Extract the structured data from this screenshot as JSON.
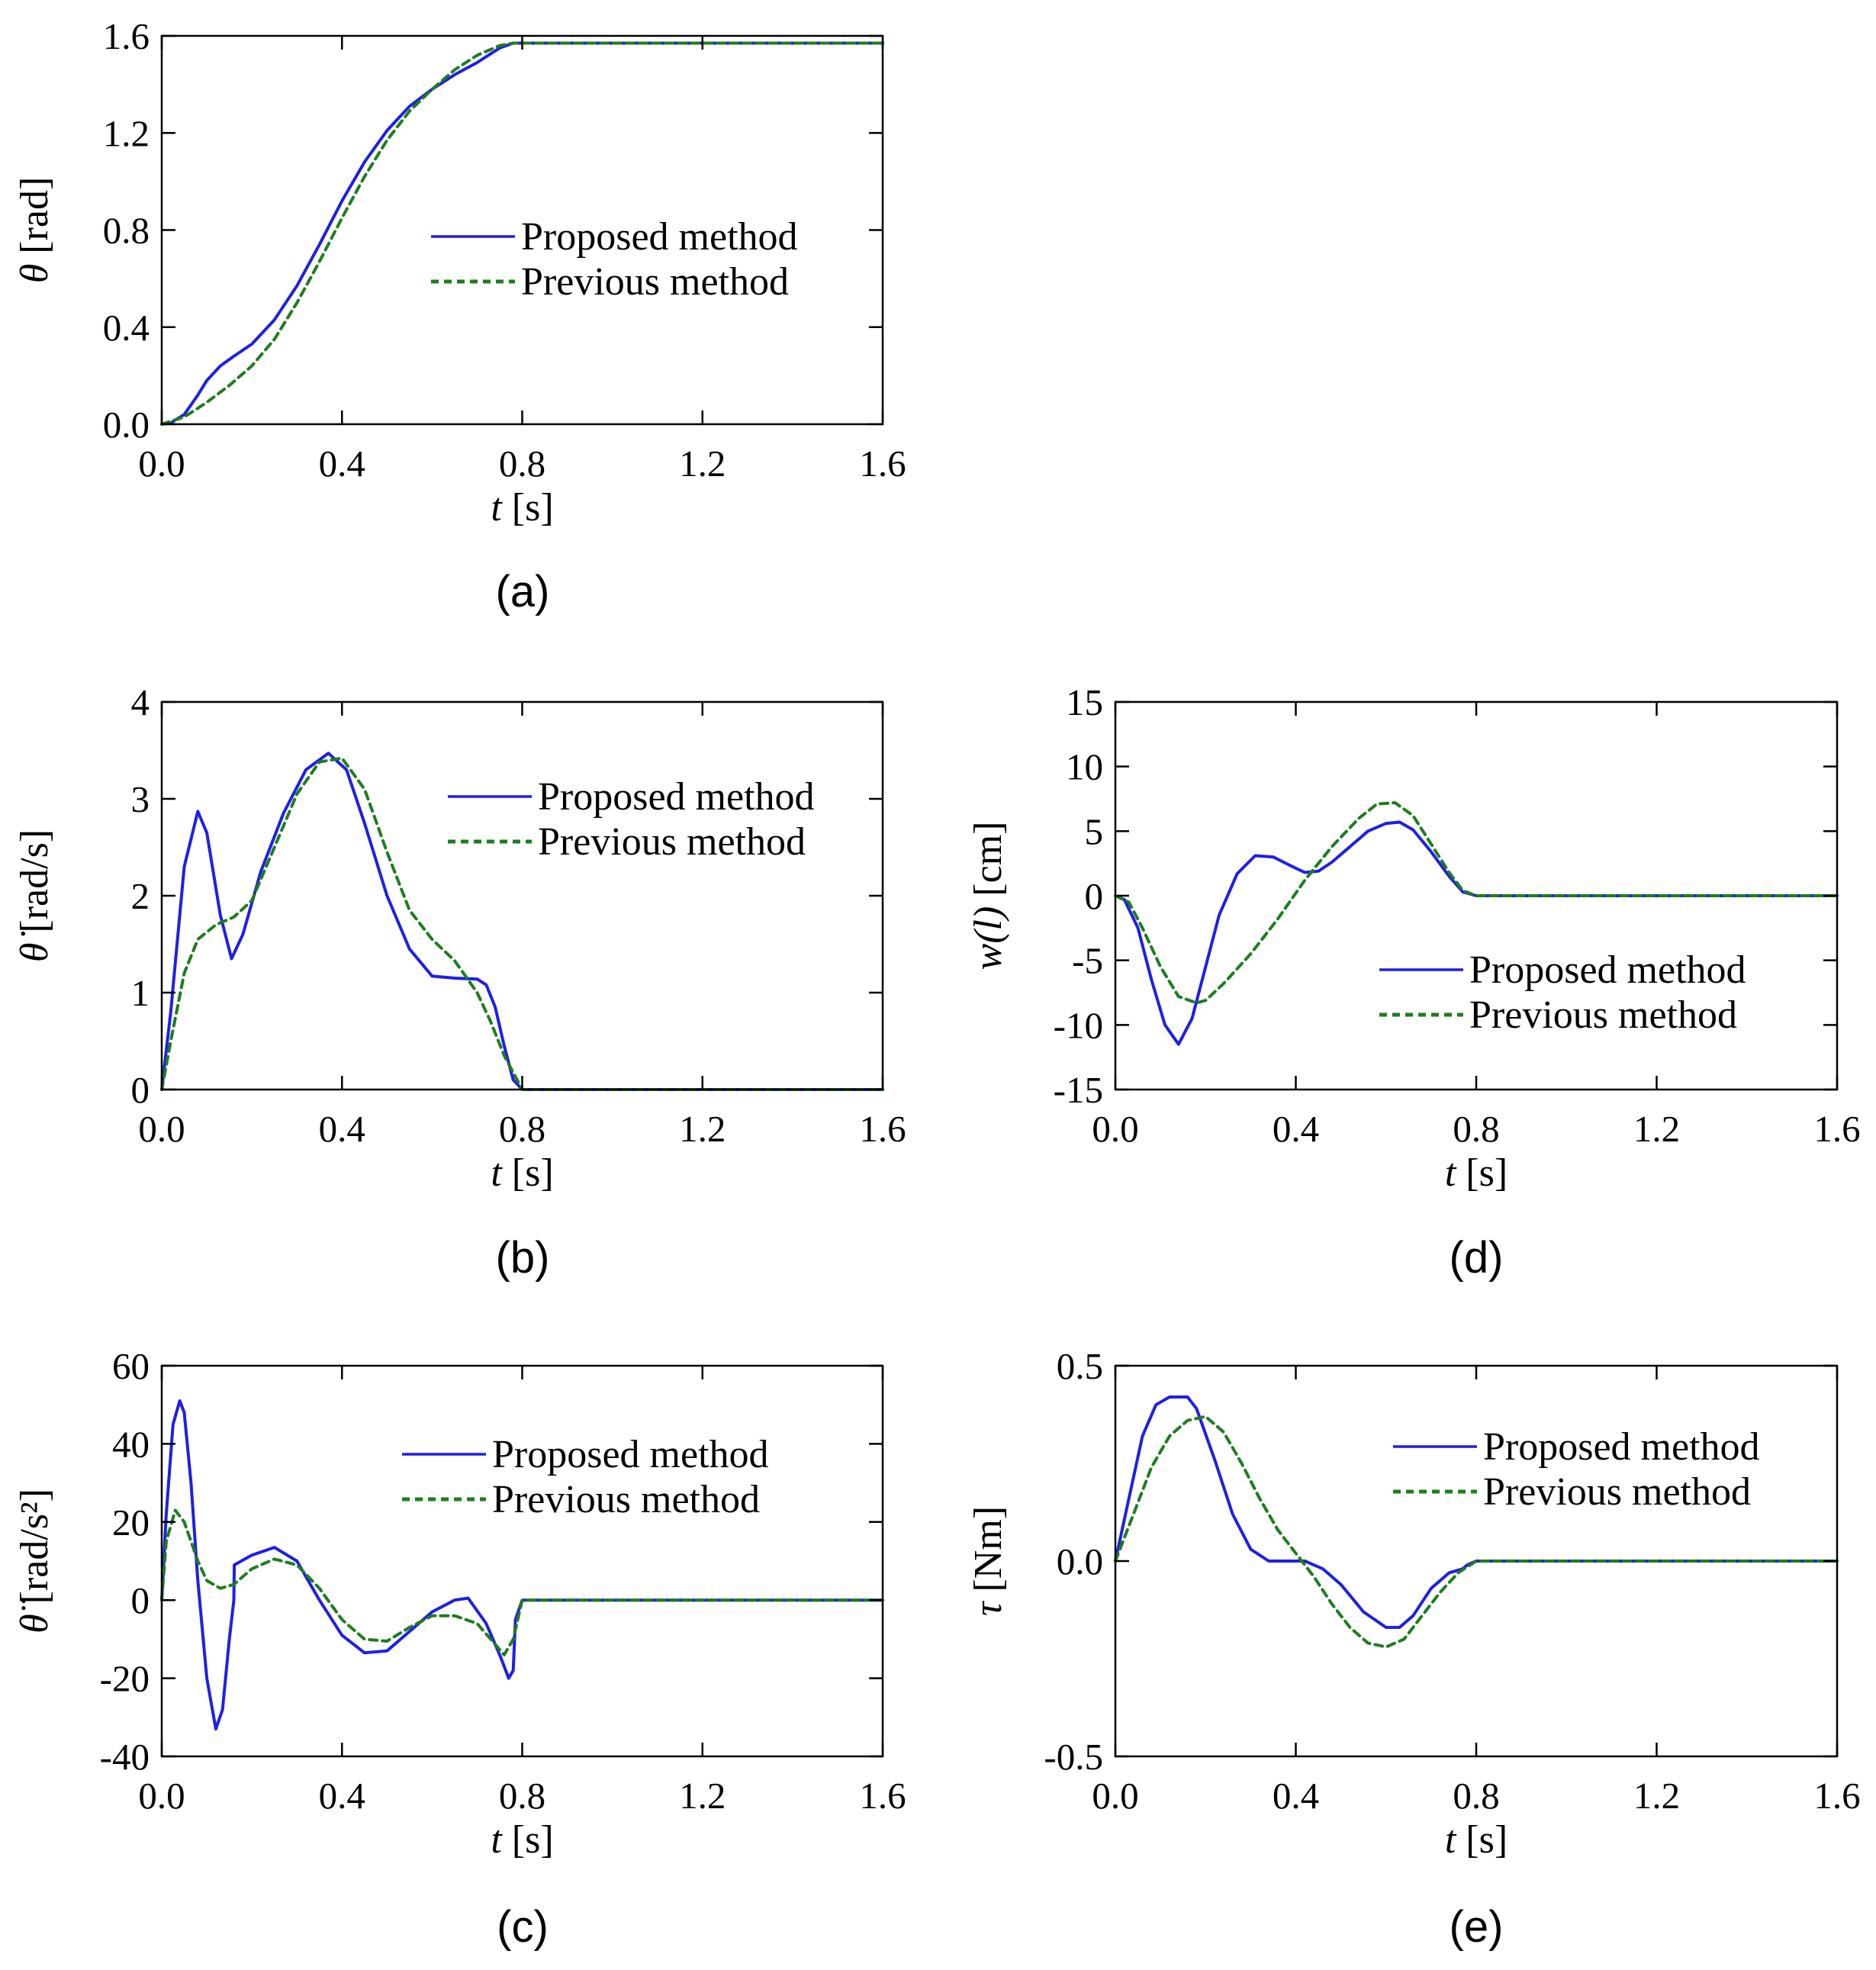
{
  "colors": {
    "proposed": "#1f1fe6",
    "previous": "#1e7d1e",
    "axis": "#000000"
  },
  "legend": {
    "proposed": "Proposed method",
    "previous": "Previous method"
  },
  "chart_data": [
    {
      "id": "a",
      "panel_label": "(a)",
      "type": "line",
      "xlabel": {
        "var": "t",
        "unit": "[s]"
      },
      "ylabel": {
        "var": "θ",
        "unit": "[rad]"
      },
      "xlim": [
        0,
        1.6
      ],
      "ylim": [
        0,
        1.6
      ],
      "xticks": [
        0,
        0.4,
        0.8,
        1.2,
        1.6
      ],
      "xtick_labels": [
        "0.0",
        "0.4",
        "0.8",
        "1.2",
        "1.6"
      ],
      "yticks": [
        0,
        0.4,
        0.8,
        1.2,
        1.6
      ],
      "ytick_labels": [
        "0.0",
        "0.4",
        "0.8",
        "1.2",
        "1.6"
      ],
      "legend_position": "center-right",
      "series": [
        {
          "name": "Proposed method",
          "style": "solid",
          "x": [
            0,
            0.02,
            0.05,
            0.08,
            0.1,
            0.13,
            0.16,
            0.2,
            0.25,
            0.3,
            0.35,
            0.4,
            0.45,
            0.5,
            0.55,
            0.6,
            0.65,
            0.7,
            0.75,
            0.78,
            0.8,
            1.0,
            1.2,
            1.4,
            1.6
          ],
          "y": [
            0,
            0.005,
            0.04,
            0.12,
            0.18,
            0.24,
            0.28,
            0.33,
            0.43,
            0.57,
            0.74,
            0.92,
            1.08,
            1.21,
            1.31,
            1.38,
            1.44,
            1.49,
            1.55,
            1.57,
            1.57,
            1.57,
            1.57,
            1.57,
            1.57
          ]
        },
        {
          "name": "Previous method",
          "style": "dashed",
          "x": [
            0,
            0.05,
            0.1,
            0.15,
            0.2,
            0.25,
            0.3,
            0.35,
            0.4,
            0.45,
            0.5,
            0.55,
            0.6,
            0.65,
            0.7,
            0.75,
            0.78,
            0.8,
            1.0,
            1.2,
            1.4,
            1.6
          ],
          "y": [
            0,
            0.03,
            0.09,
            0.16,
            0.24,
            0.35,
            0.5,
            0.67,
            0.85,
            1.02,
            1.17,
            1.29,
            1.38,
            1.46,
            1.52,
            1.56,
            1.57,
            1.57,
            1.57,
            1.57,
            1.57,
            1.57
          ]
        }
      ]
    },
    {
      "id": "b",
      "panel_label": "(b)",
      "type": "line",
      "xlabel": {
        "var": "t",
        "unit": "[s]"
      },
      "ylabel": {
        "var": "θ̇",
        "unit": "[rad/s]"
      },
      "xlim": [
        0,
        1.6
      ],
      "ylim": [
        0,
        4
      ],
      "xticks": [
        0,
        0.4,
        0.8,
        1.2,
        1.6
      ],
      "xtick_labels": [
        "0.0",
        "0.4",
        "0.8",
        "1.2",
        "1.6"
      ],
      "yticks": [
        0,
        1,
        2,
        3,
        4
      ],
      "ytick_labels": [
        "0",
        "1",
        "2",
        "3",
        "4"
      ],
      "legend_position": "top-right",
      "series": [
        {
          "name": "Proposed method",
          "style": "solid",
          "x": [
            0,
            0.02,
            0.05,
            0.08,
            0.1,
            0.13,
            0.155,
            0.18,
            0.22,
            0.27,
            0.32,
            0.37,
            0.41,
            0.45,
            0.5,
            0.55,
            0.6,
            0.65,
            0.7,
            0.72,
            0.74,
            0.76,
            0.78,
            0.8,
            1.0,
            1.2,
            1.4,
            1.6
          ],
          "y": [
            0,
            0.8,
            2.3,
            2.87,
            2.65,
            1.8,
            1.35,
            1.6,
            2.25,
            2.85,
            3.3,
            3.47,
            3.3,
            2.75,
            2.0,
            1.45,
            1.17,
            1.15,
            1.14,
            1.08,
            0.85,
            0.45,
            0.1,
            0,
            0,
            0,
            0,
            0
          ]
        },
        {
          "name": "Previous method",
          "style": "dashed",
          "x": [
            0,
            0.02,
            0.05,
            0.08,
            0.12,
            0.16,
            0.2,
            0.25,
            0.3,
            0.35,
            0.4,
            0.45,
            0.5,
            0.55,
            0.6,
            0.65,
            0.7,
            0.73,
            0.76,
            0.8,
            1.0,
            1.2,
            1.4,
            1.6
          ],
          "y": [
            0,
            0.5,
            1.2,
            1.55,
            1.7,
            1.78,
            1.95,
            2.5,
            3.05,
            3.38,
            3.42,
            3.1,
            2.45,
            1.85,
            1.55,
            1.33,
            1.0,
            0.7,
            0.35,
            0,
            0,
            0,
            0,
            0
          ]
        }
      ]
    },
    {
      "id": "c",
      "panel_label": "(c)",
      "type": "line",
      "xlabel": {
        "var": "t",
        "unit": "[s]"
      },
      "ylabel": {
        "var": "θ̈",
        "unit": "[rad/s²]"
      },
      "xlim": [
        0,
        1.6
      ],
      "ylim": [
        -40,
        60
      ],
      "xticks": [
        0,
        0.4,
        0.8,
        1.2,
        1.6
      ],
      "xtick_labels": [
        "0.0",
        "0.4",
        "0.8",
        "1.2",
        "1.6"
      ],
      "yticks": [
        -40,
        -20,
        0,
        20,
        40,
        60
      ],
      "ytick_labels": [
        "-40",
        "-20",
        "0",
        "20",
        "40",
        "60"
      ],
      "legend_position": "top-right",
      "series": [
        {
          "name": "Proposed method",
          "style": "solid",
          "x": [
            0,
            0.01,
            0.025,
            0.04,
            0.05,
            0.065,
            0.08,
            0.1,
            0.12,
            0.135,
            0.15,
            0.16,
            0.161,
            0.2,
            0.25,
            0.3,
            0.35,
            0.4,
            0.45,
            0.5,
            0.55,
            0.6,
            0.65,
            0.68,
            0.72,
            0.75,
            0.77,
            0.78,
            0.785,
            0.8,
            1.0,
            1.2,
            1.4,
            1.6
          ],
          "y": [
            0,
            22,
            45,
            51,
            48,
            30,
            5,
            -20,
            -33,
            -28,
            -10,
            0,
            9,
            11.5,
            13.5,
            10,
            0,
            -9,
            -13.5,
            -13,
            -8,
            -3,
            0,
            0.5,
            -6,
            -14,
            -20,
            -18,
            -5,
            0,
            0,
            0,
            0,
            0
          ]
        },
        {
          "name": "Previous method",
          "style": "dashed",
          "x": [
            0,
            0.01,
            0.03,
            0.05,
            0.08,
            0.1,
            0.13,
            0.16,
            0.2,
            0.25,
            0.3,
            0.35,
            0.4,
            0.45,
            0.5,
            0.55,
            0.6,
            0.65,
            0.7,
            0.73,
            0.76,
            0.78,
            0.8,
            1.0,
            1.2,
            1.4,
            1.6
          ],
          "y": [
            0,
            15,
            23,
            20,
            10,
            5,
            3,
            4,
            8,
            10.5,
            9,
            3,
            -5,
            -10,
            -10.5,
            -7,
            -4,
            -4,
            -6,
            -10,
            -14,
            -10,
            0,
            0,
            0,
            0,
            0
          ]
        }
      ]
    },
    {
      "id": "d",
      "panel_label": "(d)",
      "type": "line",
      "xlabel": {
        "var": "t",
        "unit": "[s]"
      },
      "ylabel": {
        "var": "w(l)",
        "unit": "[cm]"
      },
      "xlim": [
        0,
        1.6
      ],
      "ylim": [
        -15,
        15
      ],
      "xticks": [
        0,
        0.4,
        0.8,
        1.2,
        1.6
      ],
      "xtick_labels": [
        "0.0",
        "0.4",
        "0.8",
        "1.2",
        "1.6"
      ],
      "yticks": [
        -15,
        -10,
        -5,
        0,
        5,
        10,
        15
      ],
      "ytick_labels": [
        "-15",
        "-10",
        "-5",
        "0",
        "5",
        "10",
        "15"
      ],
      "legend_position": "bottom-right",
      "series": [
        {
          "name": "Proposed method",
          "style": "solid",
          "x": [
            0,
            0.02,
            0.05,
            0.08,
            0.11,
            0.14,
            0.17,
            0.2,
            0.23,
            0.27,
            0.31,
            0.35,
            0.39,
            0.42,
            0.45,
            0.48,
            0.52,
            0.56,
            0.6,
            0.63,
            0.66,
            0.7,
            0.74,
            0.77,
            0.8,
            1.0,
            1.2,
            1.4,
            1.6
          ],
          "y": [
            0,
            -0.3,
            -2.5,
            -6.5,
            -10,
            -11.5,
            -9.5,
            -5.5,
            -1.5,
            1.7,
            3.1,
            3.0,
            2.3,
            1.8,
            1.9,
            2.6,
            3.8,
            5.0,
            5.6,
            5.7,
            5.1,
            3.4,
            1.5,
            0.3,
            0,
            0,
            0,
            0,
            0
          ]
        },
        {
          "name": "Previous method",
          "style": "dashed",
          "x": [
            0,
            0.03,
            0.06,
            0.1,
            0.14,
            0.18,
            0.2,
            0.24,
            0.3,
            0.36,
            0.42,
            0.48,
            0.54,
            0.58,
            0.62,
            0.66,
            0.7,
            0.74,
            0.77,
            0.8,
            1.0,
            1.2,
            1.4,
            1.6
          ],
          "y": [
            0,
            -0.5,
            -2.5,
            -5.5,
            -7.8,
            -8.3,
            -8.1,
            -6.8,
            -4.5,
            -1.8,
            1.2,
            3.8,
            6.0,
            7.1,
            7.2,
            6.2,
            4.0,
            1.8,
            0.4,
            0,
            0,
            0,
            0,
            0
          ]
        }
      ]
    },
    {
      "id": "e",
      "panel_label": "(e)",
      "type": "line",
      "xlabel": {
        "var": "t",
        "unit": "[s]"
      },
      "ylabel": {
        "var": "τ",
        "unit": "[Nm]"
      },
      "xlim": [
        0,
        1.6
      ],
      "ylim": [
        -0.5,
        0.5
      ],
      "xticks": [
        0,
        0.4,
        0.8,
        1.2,
        1.6
      ],
      "xtick_labels": [
        "0.0",
        "0.4",
        "0.8",
        "1.2",
        "1.6"
      ],
      "yticks": [
        -0.5,
        0,
        0.5
      ],
      "ytick_labels": [
        "-0.5",
        "0.0",
        "0.5"
      ],
      "legend_position": "top-right",
      "series": [
        {
          "name": "Proposed method",
          "style": "solid",
          "x": [
            0,
            0.03,
            0.06,
            0.09,
            0.12,
            0.16,
            0.18,
            0.22,
            0.26,
            0.3,
            0.34,
            0.38,
            0.42,
            0.46,
            0.5,
            0.55,
            0.6,
            0.63,
            0.66,
            0.7,
            0.74,
            0.77,
            0.78,
            0.8,
            1.0,
            1.2,
            1.4,
            1.6
          ],
          "y": [
            0,
            0.16,
            0.32,
            0.4,
            0.42,
            0.42,
            0.39,
            0.26,
            0.12,
            0.03,
            0.0,
            0.0,
            0.0,
            -0.02,
            -0.06,
            -0.13,
            -0.17,
            -0.17,
            -0.14,
            -0.07,
            -0.03,
            -0.02,
            -0.01,
            0,
            0,
            0,
            0,
            0
          ]
        },
        {
          "name": "Previous method",
          "style": "dashed",
          "x": [
            0,
            0.04,
            0.08,
            0.12,
            0.16,
            0.2,
            0.24,
            0.28,
            0.32,
            0.36,
            0.4,
            0.44,
            0.48,
            0.52,
            0.56,
            0.6,
            0.64,
            0.68,
            0.72,
            0.76,
            0.8,
            1.0,
            1.2,
            1.4,
            1.6
          ],
          "y": [
            0,
            0.12,
            0.24,
            0.32,
            0.36,
            0.37,
            0.33,
            0.25,
            0.16,
            0.08,
            0.02,
            -0.04,
            -0.11,
            -0.17,
            -0.21,
            -0.22,
            -0.2,
            -0.14,
            -0.08,
            -0.03,
            0,
            0,
            0,
            0,
            0
          ]
        }
      ]
    }
  ]
}
